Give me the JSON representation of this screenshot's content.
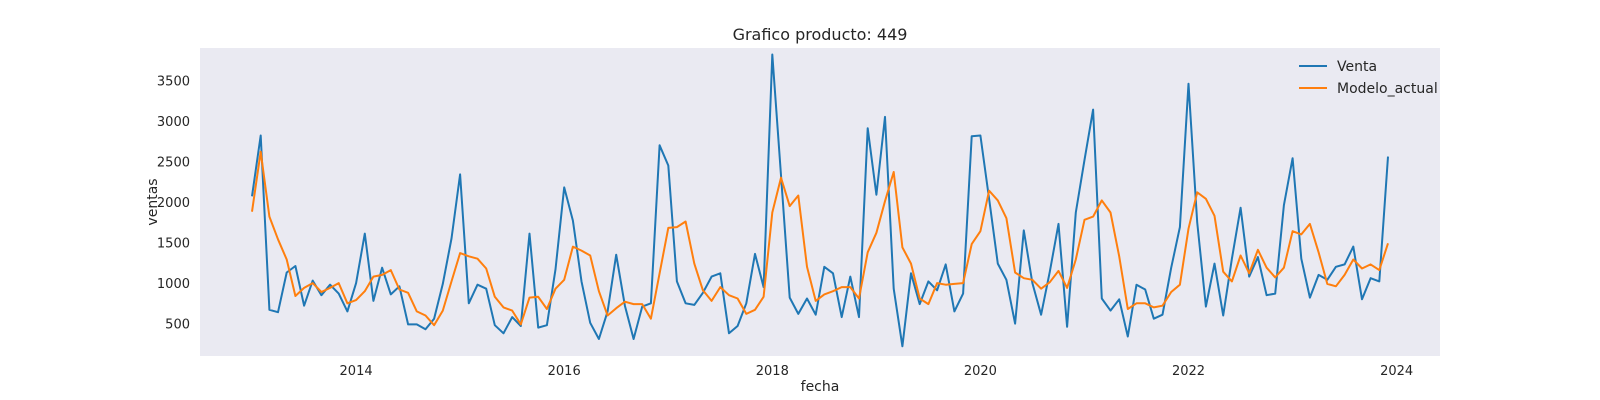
{
  "chart_data": {
    "type": "line",
    "title": "Grafico producto: 449",
    "xlabel": "fecha",
    "ylabel": "ventas",
    "x_start": "2013-01",
    "x_ticks": [
      "2014",
      "2016",
      "2018",
      "2020",
      "2022",
      "2024"
    ],
    "y_ticks": [
      500,
      1000,
      1500,
      2000,
      2500,
      3000,
      3500
    ],
    "xlim": [
      "2012-07",
      "2024-06"
    ],
    "ylim": [
      100,
      3900
    ],
    "grid": false,
    "legend_position": "top-right",
    "series": [
      {
        "name": "Venta",
        "color": "#1f77b4",
        "values": [
          2070,
          2820,
          670,
          640,
          1130,
          1210,
          720,
          1030,
          850,
          980,
          870,
          650,
          1000,
          1610,
          780,
          1190,
          860,
          960,
          490,
          490,
          430,
          560,
          990,
          1550,
          2340,
          750,
          980,
          930,
          480,
          380,
          580,
          470,
          1610,
          450,
          480,
          1170,
          2180,
          1770,
          1020,
          510,
          310,
          650,
          1350,
          720,
          310,
          710,
          750,
          2700,
          2450,
          1020,
          750,
          730,
          880,
          1080,
          1120,
          380,
          470,
          750,
          1360,
          950,
          3820,
          2330,
          820,
          620,
          810,
          610,
          1200,
          1120,
          580,
          1080,
          580,
          2910,
          2090,
          3050,
          930,
          220,
          1120,
          740,
          1020,
          910,
          1230,
          650,
          870,
          2810,
          2820,
          2040,
          1240,
          1040,
          500,
          1650,
          1000,
          610,
          1140,
          1730,
          460,
          1870,
          2520,
          3140,
          810,
          660,
          800,
          340,
          980,
          920,
          560,
          610,
          1190,
          1690,
          3460,
          1750,
          710,
          1240,
          600,
          1300,
          1930,
          1080,
          1320,
          850,
          870,
          1960,
          2540,
          1300,
          820,
          1100,
          1040,
          1200,
          1230,
          1450,
          800,
          1060,
          1020,
          2560
        ]
      },
      {
        "name": "Modelo_actual",
        "color": "#ff7f0e",
        "values": [
          1880,
          2620,
          1820,
          1540,
          1290,
          840,
          940,
          1000,
          890,
          940,
          1000,
          750,
          790,
          900,
          1080,
          1100,
          1160,
          920,
          880,
          650,
          600,
          480,
          660,
          1020,
          1370,
          1330,
          1300,
          1180,
          830,
          700,
          660,
          490,
          820,
          830,
          680,
          930,
          1040,
          1450,
          1400,
          1340,
          900,
          600,
          690,
          770,
          740,
          740,
          560,
          1120,
          1680,
          1690,
          1760,
          1240,
          910,
          780,
          950,
          850,
          810,
          620,
          670,
          830,
          1870,
          2300,
          1950,
          2080,
          1200,
          780,
          860,
          900,
          950,
          950,
          810,
          1380,
          1620,
          2010,
          2370,
          1440,
          1240,
          810,
          740,
          1000,
          980,
          990,
          1000,
          1480,
          1640,
          2140,
          2020,
          1800,
          1130,
          1060,
          1040,
          930,
          1010,
          1150,
          940,
          1290,
          1780,
          1820,
          2020,
          1870,
          1330,
          680,
          750,
          750,
          700,
          720,
          890,
          980,
          1670,
          2120,
          2040,
          1830,
          1140,
          1020,
          1340,
          1120,
          1410,
          1190,
          1070,
          1190,
          1640,
          1600,
          1730,
          1380,
          990,
          960,
          1100,
          1290,
          1180,
          1230,
          1160,
          1490
        ]
      }
    ]
  }
}
